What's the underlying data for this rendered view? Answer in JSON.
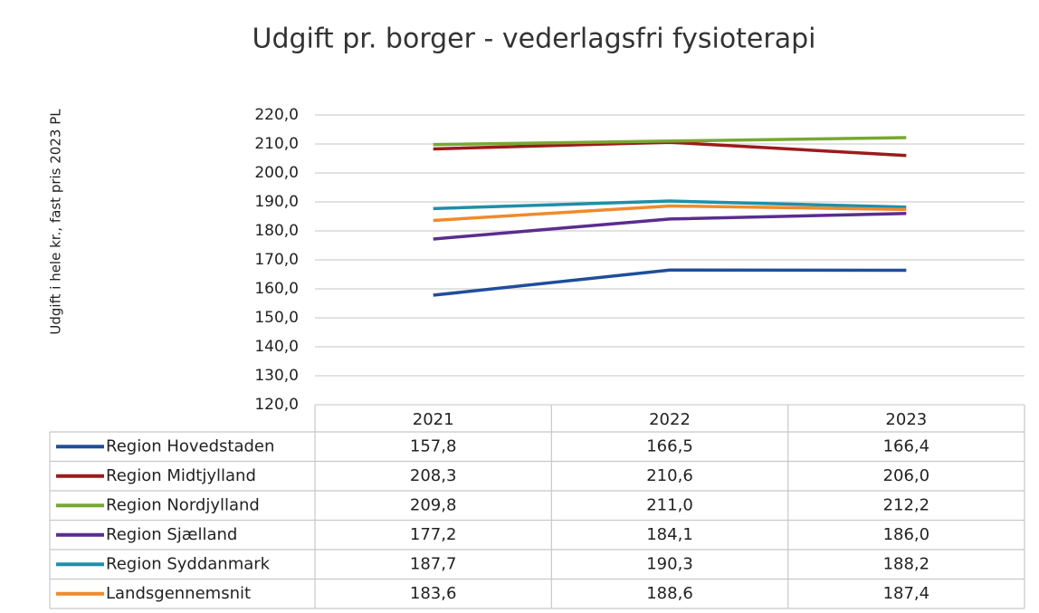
{
  "chart_data": {
    "type": "line",
    "title": "Udgift pr. borger -  vederlagsfri fysioterapi",
    "ylabel": "Udgift i hele kr., fast pris 2023  PL",
    "categories": [
      "2021",
      "2022",
      "2023"
    ],
    "ylim": [
      120,
      220
    ],
    "yticks": [
      {
        "value": 120,
        "label": "120,0"
      },
      {
        "value": 130,
        "label": "130,0"
      },
      {
        "value": 140,
        "label": "140,0"
      },
      {
        "value": 150,
        "label": "150,0"
      },
      {
        "value": 160,
        "label": "160,0"
      },
      {
        "value": 170,
        "label": "170,0"
      },
      {
        "value": 180,
        "label": "180,0"
      },
      {
        "value": 190,
        "label": "190,0"
      },
      {
        "value": 200,
        "label": "200,0"
      },
      {
        "value": 210,
        "label": "210,0"
      },
      {
        "value": 220,
        "label": "220,0"
      }
    ],
    "grid": true,
    "series": [
      {
        "name": "Region Hovedstaden",
        "color": "#1f4e9a",
        "values": [
          157.8,
          166.5,
          166.4
        ],
        "value_labels": [
          "157,8",
          "166,5",
          "166,4"
        ]
      },
      {
        "name": "Region Midtjylland",
        "color": "#9b1b1b",
        "values": [
          208.3,
          210.6,
          206.0
        ],
        "value_labels": [
          "208,3",
          "210,6",
          "206,0"
        ]
      },
      {
        "name": "Region Nordjylland",
        "color": "#77a832",
        "values": [
          209.8,
          211.0,
          212.2
        ],
        "value_labels": [
          "209,8",
          "211,0",
          "212,2"
        ]
      },
      {
        "name": "Region Sjælland",
        "color": "#5b2d8e",
        "values": [
          177.2,
          184.1,
          186.0
        ],
        "value_labels": [
          "177,2",
          "184,1",
          "186,0"
        ]
      },
      {
        "name": "Region Syddanmark",
        "color": "#1e8fa8",
        "values": [
          187.7,
          190.3,
          188.2
        ],
        "value_labels": [
          "187,7",
          "190,3",
          "188,2"
        ]
      },
      {
        "name": "Landsgennemsnit",
        "color": "#f08a2c",
        "values": [
          183.6,
          188.6,
          187.4
        ],
        "value_labels": [
          "183,6",
          "188,6",
          "187,4"
        ]
      }
    ]
  }
}
